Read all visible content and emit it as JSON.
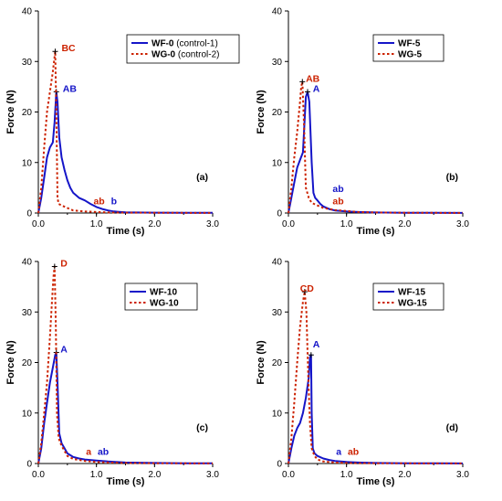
{
  "colors": {
    "wf": "#1515c8",
    "wg": "#cc2200",
    "axis": "#000000"
  },
  "chart_data": [
    {
      "type": "line",
      "panel_label": "(a)",
      "xlabel": "Time (s)",
      "ylabel": "Force (N)",
      "xlim": [
        0,
        3
      ],
      "ylim": [
        0,
        40
      ],
      "xticks": [
        "0.0",
        "1.0",
        "2.0",
        "3.0"
      ],
      "yticks": [
        "0",
        "10",
        "20",
        "30",
        "40"
      ],
      "legend": {
        "placement": "top-right",
        "entries": [
          {
            "bold": "WF-0",
            "rest": " (control-1)",
            "style": "solid",
            "color": "#1515c8"
          },
          {
            "bold": "WG-0",
            "rest": " (control-2)",
            "style": "dotted",
            "color": "#cc2200"
          }
        ]
      },
      "series": [
        {
          "name": "WF-0",
          "style": "solid",
          "color": "#1515c8",
          "x": [
            0,
            0.05,
            0.1,
            0.15,
            0.2,
            0.25,
            0.28,
            0.31,
            0.33,
            0.36,
            0.4,
            0.45,
            0.5,
            0.55,
            0.6,
            0.7,
            0.8,
            0.9,
            1.0,
            1.1,
            1.2,
            1.3,
            1.5,
            2.0,
            2.5,
            3.0
          ],
          "y": [
            0,
            3,
            7,
            11,
            13,
            14,
            18,
            24,
            22,
            15,
            11,
            8.5,
            6.5,
            5,
            4,
            3,
            2.5,
            1.8,
            1.2,
            0.8,
            0.5,
            0.3,
            0.15,
            0.08,
            0.05,
            0.03
          ]
        },
        {
          "name": "WG-0",
          "style": "dotted",
          "color": "#cc2200",
          "x": [
            0,
            0.05,
            0.1,
            0.15,
            0.2,
            0.25,
            0.29,
            0.31,
            0.33,
            0.35,
            0.4,
            0.5,
            0.6,
            0.8,
            1.0,
            1.2,
            1.5,
            2.0,
            3.0
          ],
          "y": [
            0,
            5,
            13,
            20,
            24,
            28,
            32,
            20,
            3,
            1.8,
            1.5,
            1,
            0.5,
            0.3,
            0.2,
            0.1,
            0.08,
            0.05,
            0.02
          ]
        }
      ],
      "annotations": [
        {
          "text": "BC",
          "x": 0.4,
          "y": 32,
          "series": "WG"
        },
        {
          "text": "AB",
          "x": 0.42,
          "y": 24,
          "series": "WF"
        },
        {
          "text": "ab",
          "x": 0.95,
          "y": 1.7,
          "series": "WG"
        },
        {
          "text": "b",
          "x": 1.25,
          "y": 1.7,
          "series": "WF"
        }
      ]
    },
    {
      "type": "line",
      "panel_label": "(b)",
      "xlabel": "Time (s)",
      "ylabel": "Force (N)",
      "xlim": [
        0,
        3
      ],
      "ylim": [
        0,
        40
      ],
      "xticks": [
        "0.0",
        "1.0",
        "2.0",
        "3.0"
      ],
      "yticks": [
        "0",
        "10",
        "20",
        "30",
        "40"
      ],
      "legend": {
        "placement": "top-right",
        "entries": [
          {
            "bold": "WF-5",
            "rest": "",
            "style": "solid",
            "color": "#1515c8"
          },
          {
            "bold": "WG-5",
            "rest": "",
            "style": "dotted",
            "color": "#cc2200"
          }
        ]
      },
      "series": [
        {
          "name": "WF-5",
          "style": "solid",
          "color": "#1515c8",
          "x": [
            0,
            0.05,
            0.1,
            0.15,
            0.2,
            0.25,
            0.3,
            0.33,
            0.36,
            0.4,
            0.43,
            0.46,
            0.5,
            0.55,
            0.6,
            0.7,
            0.8,
            1.0,
            1.2,
            1.5,
            2.0,
            2.5,
            3.0
          ],
          "y": [
            0,
            3,
            6,
            9,
            10.5,
            12,
            23,
            24,
            22,
            10,
            4,
            3,
            2.5,
            1.8,
            1.3,
            0.8,
            0.5,
            0.3,
            0.2,
            0.1,
            0.06,
            0.04,
            0.02
          ]
        },
        {
          "name": "WG-5",
          "style": "dotted",
          "color": "#cc2200",
          "x": [
            0,
            0.05,
            0.1,
            0.15,
            0.2,
            0.22,
            0.24,
            0.27,
            0.3,
            0.35,
            0.4,
            0.5,
            0.6,
            0.8,
            1.0,
            1.2,
            1.5,
            2.0,
            3.0
          ],
          "y": [
            0,
            5,
            11,
            16,
            22,
            25,
            26,
            17,
            5,
            3,
            2,
            1.5,
            1,
            0.6,
            0.4,
            0.2,
            0.1,
            0.05,
            0.02
          ]
        }
      ],
      "annotations": [
        {
          "text": "AB",
          "x": 0.3,
          "y": 26,
          "series": "WG"
        },
        {
          "text": "A",
          "x": 0.42,
          "y": 24,
          "series": "WF"
        },
        {
          "text": "ab",
          "x": 0.76,
          "y": 4.2,
          "series": "WF"
        },
        {
          "text": "ab",
          "x": 0.76,
          "y": 1.7,
          "series": "WG"
        }
      ]
    },
    {
      "type": "line",
      "panel_label": "(c)",
      "xlabel": "Time (s)",
      "ylabel": "Force (N)",
      "xlim": [
        0,
        3
      ],
      "ylim": [
        0,
        40
      ],
      "xticks": [
        "0.0",
        "1.0",
        "2.0",
        "3.0"
      ],
      "yticks": [
        "0",
        "10",
        "20",
        "30",
        "40"
      ],
      "legend": {
        "placement": "top-right",
        "entries": [
          {
            "bold": "WF-10",
            "rest": "",
            "style": "solid",
            "color": "#1515c8"
          },
          {
            "bold": "WG-10",
            "rest": "",
            "style": "dotted",
            "color": "#cc2200"
          }
        ]
      },
      "series": [
        {
          "name": "WF-10",
          "style": "solid",
          "color": "#1515c8",
          "x": [
            0,
            0.05,
            0.1,
            0.15,
            0.2,
            0.25,
            0.29,
            0.31,
            0.33,
            0.36,
            0.4,
            0.45,
            0.5,
            0.6,
            0.7,
            0.8,
            1.0,
            1.2,
            1.5,
            2.0,
            2.5,
            3.0
          ],
          "y": [
            0,
            3,
            8,
            12,
            16,
            19,
            21.5,
            22,
            16,
            6,
            4,
            3,
            2,
            1.3,
            1,
            0.8,
            0.6,
            0.4,
            0.2,
            0.1,
            0.05,
            0.03
          ]
        },
        {
          "name": "WG-10",
          "style": "dotted",
          "color": "#cc2200",
          "x": [
            0,
            0.05,
            0.1,
            0.15,
            0.2,
            0.23,
            0.26,
            0.28,
            0.3,
            0.32,
            0.35,
            0.4,
            0.45,
            0.5,
            0.6,
            0.8,
            1.0,
            1.2,
            1.5,
            2.0,
            3.0
          ],
          "y": [
            0,
            4,
            10,
            16,
            25,
            31,
            37,
            39,
            28,
            10,
            5,
            3.5,
            2.5,
            1.5,
            0.9,
            0.5,
            0.3,
            0.2,
            0.1,
            0.05,
            0.02
          ]
        }
      ],
      "annotations": [
        {
          "text": "D",
          "x": 0.38,
          "y": 39,
          "series": "WG"
        },
        {
          "text": "A",
          "x": 0.38,
          "y": 22,
          "series": "WF"
        },
        {
          "text": "a",
          "x": 0.82,
          "y": 1.7,
          "series": "WG"
        },
        {
          "text": "ab",
          "x": 1.02,
          "y": 1.7,
          "series": "WF"
        }
      ]
    },
    {
      "type": "line",
      "panel_label": "(d)",
      "xlabel": "Time (s)",
      "ylabel": "Force (N)",
      "xlim": [
        0,
        3
      ],
      "ylim": [
        0,
        40
      ],
      "xticks": [
        "0.0",
        "1.0",
        "2.0",
        "3.0"
      ],
      "yticks": [
        "0",
        "10",
        "20",
        "30",
        "40"
      ],
      "legend": {
        "placement": "top-right",
        "entries": [
          {
            "bold": "WF-15",
            "rest": "",
            "style": "solid",
            "color": "#1515c8"
          },
          {
            "bold": "WG-15",
            "rest": "",
            "style": "dotted",
            "color": "#cc2200"
          }
        ]
      },
      "series": [
        {
          "name": "WF-15",
          "style": "solid",
          "color": "#1515c8",
          "x": [
            0,
            0.05,
            0.1,
            0.15,
            0.2,
            0.25,
            0.3,
            0.35,
            0.37,
            0.39,
            0.4,
            0.42,
            0.45,
            0.5,
            0.6,
            0.7,
            0.8,
            1.0,
            1.2,
            1.5,
            2.0,
            2.5,
            3.0
          ],
          "y": [
            0,
            3,
            5.5,
            7,
            8,
            10,
            13,
            17,
            21,
            21.5,
            10,
            3,
            2,
            1.5,
            1,
            0.7,
            0.5,
            0.3,
            0.2,
            0.1,
            0.05,
            0.03,
            0.02
          ]
        },
        {
          "name": "WG-15",
          "style": "dotted",
          "color": "#cc2200",
          "x": [
            0,
            0.05,
            0.1,
            0.15,
            0.2,
            0.25,
            0.28,
            0.31,
            0.34,
            0.37,
            0.4,
            0.45,
            0.5,
            0.6,
            0.8,
            1.0,
            1.2,
            1.5,
            2.0,
            3.0
          ],
          "y": [
            0,
            5,
            12,
            20,
            27,
            32,
            34,
            30,
            18,
            8,
            3,
            1.5,
            0.8,
            0.4,
            0.2,
            0.1,
            0.08,
            0.05,
            0.03,
            0.02
          ]
        }
      ],
      "annotations": [
        {
          "text": "CD",
          "x": 0.2,
          "y": 34,
          "series": "WG"
        },
        {
          "text": "A",
          "x": 0.42,
          "y": 23,
          "series": "WF"
        },
        {
          "text": "a",
          "x": 0.82,
          "y": 1.7,
          "series": "WF"
        },
        {
          "text": "ab",
          "x": 1.02,
          "y": 1.7,
          "series": "WG"
        }
      ]
    }
  ]
}
